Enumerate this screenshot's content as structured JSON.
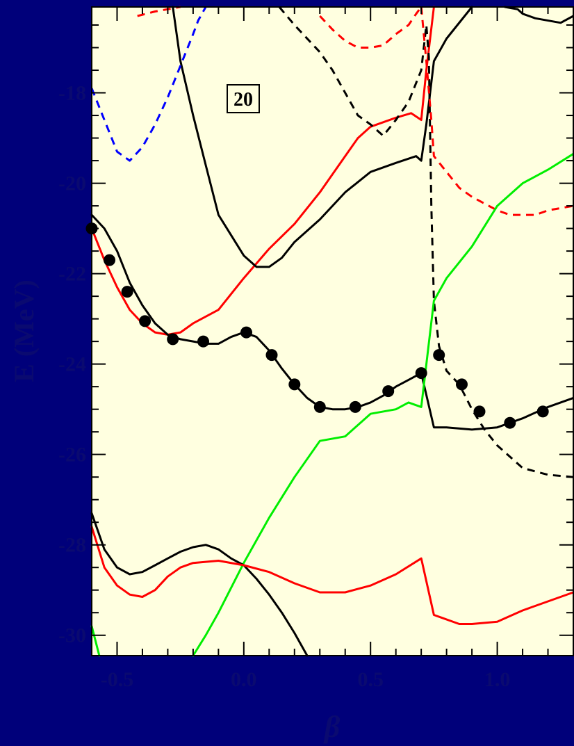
{
  "chart_data": {
    "type": "line",
    "title": "",
    "annotation": "20",
    "xlabel": "β",
    "ylabel": "E (MeV)",
    "xlim": [
      -0.6,
      1.3
    ],
    "ylim": [
      -30.45,
      -16.1
    ],
    "xticks": [
      -0.5,
      0.0,
      0.5,
      1.0
    ],
    "xtick_labels": [
      "-0.5",
      "0.0",
      "0.5",
      "1.0"
    ],
    "yticks": [
      -18,
      -20,
      -22,
      -24,
      -26,
      -28,
      -30
    ],
    "ytick_labels": [
      "-18",
      "-20",
      "-22",
      "-24",
      "-26",
      "-28",
      "-30"
    ],
    "grid": false,
    "colors": {
      "frame_background": "#00007a",
      "plot_background": "#ffffe0",
      "axis_text": "#0a0a70",
      "black": "#000000",
      "red": "#ff0000",
      "green": "#00ee00",
      "blue": "#0000ff"
    },
    "series": [
      {
        "color": "red",
        "dash": false,
        "points": [
          [
            -0.6,
            -21.0
          ],
          [
            -0.55,
            -21.7
          ],
          [
            -0.5,
            -22.3
          ],
          [
            -0.45,
            -22.8
          ],
          [
            -0.4,
            -23.1
          ],
          [
            -0.35,
            -23.3
          ],
          [
            -0.3,
            -23.35
          ],
          [
            -0.25,
            -23.3
          ],
          [
            -0.2,
            -23.1
          ],
          [
            -0.1,
            -22.8
          ],
          [
            0.0,
            -22.1
          ],
          [
            0.1,
            -21.45
          ],
          [
            0.2,
            -20.9
          ],
          [
            0.3,
            -20.2
          ],
          [
            0.4,
            -19.4
          ],
          [
            0.45,
            -19.0
          ],
          [
            0.5,
            -18.75
          ],
          [
            0.6,
            -18.55
          ],
          [
            0.66,
            -18.45
          ],
          [
            0.7,
            -18.6
          ],
          [
            0.72,
            -17.5
          ],
          [
            0.75,
            -16.1
          ]
        ]
      },
      {
        "color": "black",
        "dash": false,
        "points": [
          [
            -0.6,
            -20.7
          ],
          [
            -0.55,
            -21.0
          ],
          [
            -0.5,
            -21.5
          ],
          [
            -0.45,
            -22.2
          ],
          [
            -0.4,
            -22.7
          ],
          [
            -0.35,
            -23.1
          ],
          [
            -0.3,
            -23.35
          ],
          [
            -0.25,
            -23.45
          ],
          [
            -0.2,
            -23.5
          ],
          [
            -0.15,
            -23.55
          ],
          [
            -0.1,
            -23.55
          ],
          [
            -0.05,
            -23.4
          ],
          [
            0.0,
            -23.3
          ],
          [
            0.05,
            -23.4
          ],
          [
            0.1,
            -23.7
          ],
          [
            0.15,
            -24.1
          ],
          [
            0.2,
            -24.45
          ],
          [
            0.25,
            -24.75
          ],
          [
            0.3,
            -24.95
          ],
          [
            0.35,
            -25.0
          ],
          [
            0.4,
            -25.0
          ],
          [
            0.45,
            -24.95
          ],
          [
            0.5,
            -24.85
          ],
          [
            0.55,
            -24.7
          ],
          [
            0.6,
            -24.5
          ],
          [
            0.65,
            -24.35
          ],
          [
            0.7,
            -24.2
          ],
          [
            0.75,
            -25.4
          ],
          [
            0.8,
            -25.4
          ],
          [
            0.9,
            -25.45
          ],
          [
            1.0,
            -25.4
          ],
          [
            1.05,
            -25.3
          ],
          [
            1.1,
            -25.2
          ],
          [
            1.2,
            -24.95
          ],
          [
            1.3,
            -24.75
          ]
        ]
      },
      {
        "color": "black",
        "dash": false,
        "points": [
          [
            -0.28,
            -16.1
          ],
          [
            -0.25,
            -17.3
          ],
          [
            -0.2,
            -18.5
          ],
          [
            -0.15,
            -19.6
          ],
          [
            -0.1,
            -20.7
          ],
          [
            0.0,
            -21.6
          ],
          [
            0.05,
            -21.85
          ],
          [
            0.1,
            -21.85
          ],
          [
            0.15,
            -21.65
          ],
          [
            0.2,
            -21.3
          ],
          [
            0.3,
            -20.8
          ],
          [
            0.4,
            -20.2
          ],
          [
            0.5,
            -19.75
          ],
          [
            0.6,
            -19.55
          ],
          [
            0.68,
            -19.4
          ],
          [
            0.7,
            -19.5
          ],
          [
            0.72,
            -18.7
          ],
          [
            0.75,
            -17.3
          ],
          [
            0.8,
            -16.8
          ],
          [
            0.9,
            -16.1
          ]
        ]
      },
      {
        "color": "black",
        "dash": false,
        "points": [
          [
            1.03,
            -16.1
          ],
          [
            1.08,
            -16.15
          ],
          [
            1.1,
            -16.25
          ],
          [
            1.15,
            -16.35
          ],
          [
            1.25,
            -16.45
          ],
          [
            1.3,
            -16.3
          ]
        ]
      },
      {
        "color": "black",
        "dash": true,
        "points": [
          [
            0.14,
            -16.1
          ],
          [
            0.2,
            -16.5
          ],
          [
            0.3,
            -17.1
          ],
          [
            0.35,
            -17.5
          ],
          [
            0.4,
            -18.0
          ],
          [
            0.45,
            -18.5
          ],
          [
            0.5,
            -18.7
          ],
          [
            0.55,
            -18.95
          ],
          [
            0.6,
            -18.6
          ],
          [
            0.65,
            -18.2
          ],
          [
            0.7,
            -17.5
          ],
          [
            0.72,
            -16.5
          ],
          [
            0.73,
            -17.2
          ],
          [
            0.74,
            -20.5
          ],
          [
            0.75,
            -22.6
          ],
          [
            0.77,
            -23.6
          ],
          [
            0.8,
            -24.15
          ],
          [
            0.85,
            -24.45
          ],
          [
            0.9,
            -25.0
          ],
          [
            0.95,
            -25.45
          ],
          [
            1.0,
            -25.8
          ],
          [
            1.1,
            -26.3
          ],
          [
            1.2,
            -26.45
          ],
          [
            1.3,
            -26.5
          ]
        ]
      },
      {
        "color": "red",
        "dash": true,
        "points": [
          [
            -0.42,
            -16.3
          ],
          [
            -0.35,
            -16.2
          ],
          [
            -0.25,
            -16.1
          ]
        ]
      },
      {
        "color": "red",
        "dash": true,
        "points": [
          [
            0.3,
            -16.3
          ],
          [
            0.35,
            -16.6
          ],
          [
            0.4,
            -16.85
          ],
          [
            0.45,
            -17.0
          ],
          [
            0.5,
            -17.0
          ],
          [
            0.55,
            -16.95
          ],
          [
            0.6,
            -16.7
          ],
          [
            0.65,
            -16.5
          ],
          [
            0.68,
            -16.25
          ],
          [
            0.7,
            -16.1
          ]
        ]
      },
      {
        "color": "red",
        "dash": true,
        "points": [
          [
            0.7,
            -16.1
          ],
          [
            0.72,
            -17.3
          ],
          [
            0.74,
            -18.6
          ],
          [
            0.75,
            -19.4
          ],
          [
            0.8,
            -19.75
          ],
          [
            0.85,
            -20.1
          ],
          [
            0.9,
            -20.3
          ],
          [
            1.0,
            -20.6
          ],
          [
            1.05,
            -20.7
          ],
          [
            1.1,
            -20.7
          ],
          [
            1.15,
            -20.7
          ],
          [
            1.2,
            -20.6
          ],
          [
            1.3,
            -20.5
          ]
        ]
      },
      {
        "color": "blue",
        "dash": true,
        "points": [
          [
            -0.6,
            -17.9
          ],
          [
            -0.55,
            -18.6
          ],
          [
            -0.5,
            -19.3
          ],
          [
            -0.45,
            -19.5
          ],
          [
            -0.4,
            -19.2
          ],
          [
            -0.35,
            -18.7
          ],
          [
            -0.3,
            -18.1
          ],
          [
            -0.25,
            -17.4
          ],
          [
            -0.2,
            -16.7
          ],
          [
            -0.18,
            -16.4
          ],
          [
            -0.15,
            -16.1
          ]
        ]
      },
      {
        "color": "green",
        "dash": false,
        "points": [
          [
            -0.2,
            -30.45
          ],
          [
            -0.15,
            -30.0
          ],
          [
            -0.1,
            -29.5
          ],
          [
            0.0,
            -28.4
          ],
          [
            0.1,
            -27.4
          ],
          [
            0.2,
            -26.5
          ],
          [
            0.3,
            -25.7
          ],
          [
            0.4,
            -25.6
          ],
          [
            0.5,
            -25.1
          ],
          [
            0.6,
            -25.0
          ],
          [
            0.65,
            -24.85
          ],
          [
            0.7,
            -24.95
          ],
          [
            0.75,
            -22.6
          ],
          [
            0.8,
            -22.1
          ],
          [
            0.9,
            -21.4
          ],
          [
            1.0,
            -20.5
          ],
          [
            1.1,
            -20.0
          ],
          [
            1.2,
            -19.7
          ],
          [
            1.3,
            -19.35
          ]
        ]
      },
      {
        "color": "green",
        "dash": false,
        "points": [
          [
            -0.6,
            -29.8
          ],
          [
            -0.57,
            -30.45
          ]
        ]
      },
      {
        "color": "black",
        "dash": false,
        "points": [
          [
            -0.6,
            -27.3
          ],
          [
            -0.55,
            -28.1
          ],
          [
            -0.5,
            -28.5
          ],
          [
            -0.45,
            -28.65
          ],
          [
            -0.4,
            -28.6
          ],
          [
            -0.35,
            -28.45
          ],
          [
            -0.3,
            -28.3
          ],
          [
            -0.25,
            -28.15
          ],
          [
            -0.2,
            -28.05
          ],
          [
            -0.15,
            -28.0
          ],
          [
            -0.1,
            -28.1
          ],
          [
            -0.05,
            -28.3
          ],
          [
            0.0,
            -28.45
          ],
          [
            0.05,
            -28.75
          ],
          [
            0.1,
            -29.1
          ],
          [
            0.15,
            -29.5
          ],
          [
            0.2,
            -29.95
          ],
          [
            0.25,
            -30.45
          ]
        ]
      },
      {
        "color": "red",
        "dash": false,
        "points": [
          [
            -0.6,
            -27.6
          ],
          [
            -0.55,
            -28.5
          ],
          [
            -0.5,
            -28.9
          ],
          [
            -0.45,
            -29.1
          ],
          [
            -0.4,
            -29.15
          ],
          [
            -0.35,
            -29.0
          ],
          [
            -0.3,
            -28.7
          ],
          [
            -0.25,
            -28.5
          ],
          [
            -0.2,
            -28.4
          ],
          [
            -0.1,
            -28.35
          ],
          [
            0.0,
            -28.45
          ],
          [
            0.1,
            -28.6
          ],
          [
            0.2,
            -28.85
          ],
          [
            0.3,
            -29.05
          ],
          [
            0.4,
            -29.05
          ],
          [
            0.5,
            -28.9
          ],
          [
            0.6,
            -28.65
          ],
          [
            0.7,
            -28.3
          ],
          [
            0.75,
            -29.55
          ],
          [
            0.85,
            -29.75
          ],
          [
            0.9,
            -29.75
          ],
          [
            1.0,
            -29.7
          ],
          [
            1.1,
            -29.45
          ],
          [
            1.3,
            -29.05
          ]
        ]
      }
    ],
    "markers": [
      [
        -0.6,
        -21.0
      ],
      [
        -0.53,
        -21.7
      ],
      [
        -0.46,
        -22.4
      ],
      [
        -0.39,
        -23.05
      ],
      [
        -0.28,
        -23.45
      ],
      [
        -0.16,
        -23.5
      ],
      [
        0.01,
        -23.3
      ],
      [
        0.11,
        -23.8
      ],
      [
        0.2,
        -24.45
      ],
      [
        0.3,
        -24.95
      ],
      [
        0.44,
        -24.95
      ],
      [
        0.57,
        -24.6
      ],
      [
        0.7,
        -24.2
      ],
      [
        0.77,
        -23.8
      ],
      [
        0.86,
        -24.45
      ],
      [
        0.93,
        -25.05
      ],
      [
        1.05,
        -25.3
      ],
      [
        1.18,
        -25.05
      ]
    ]
  }
}
